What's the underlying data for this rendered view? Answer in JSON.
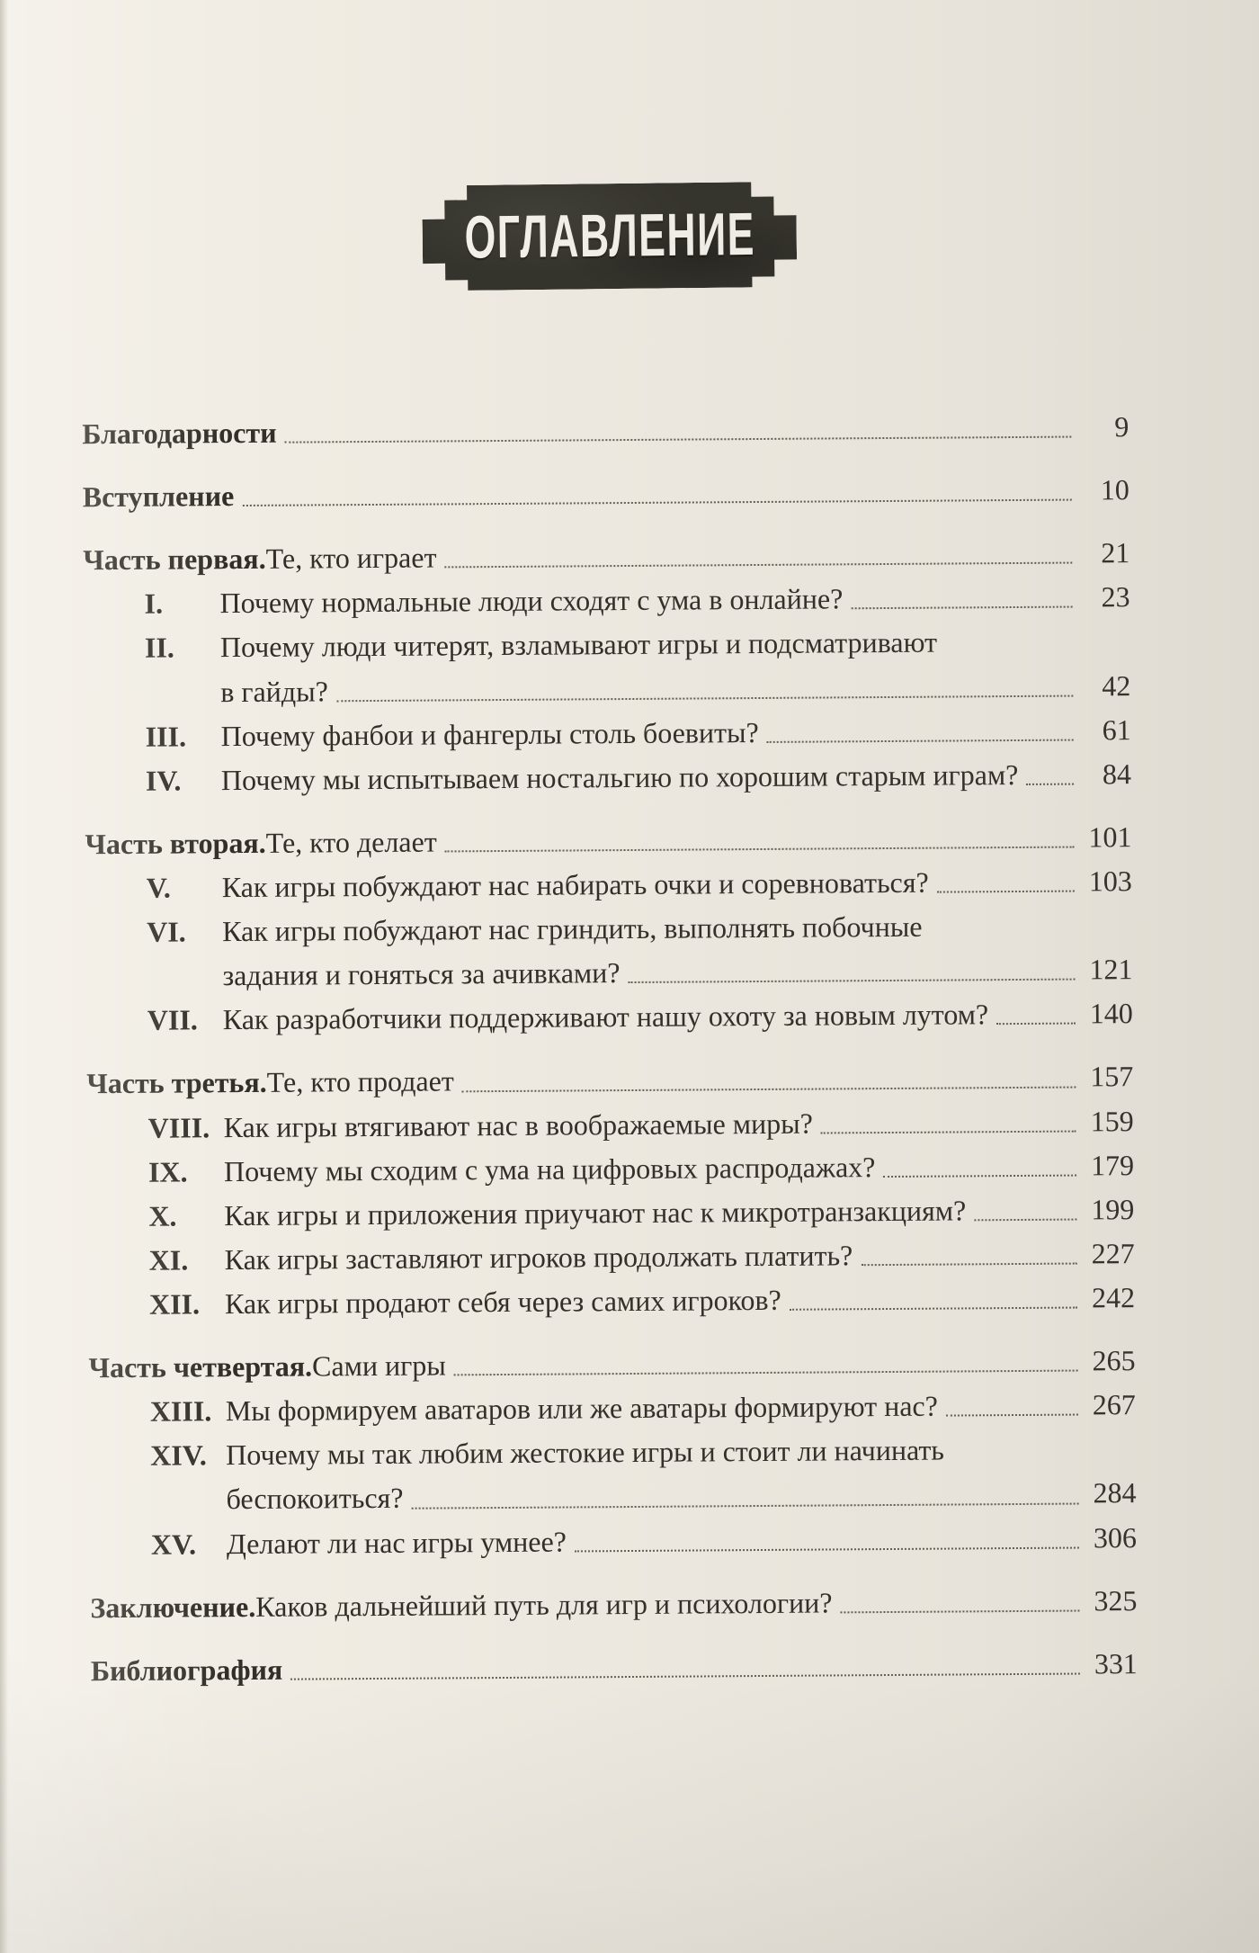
{
  "banner": {
    "title": "ОГЛАВЛЕНИЕ"
  },
  "colors": {
    "paper": "#f1ede4",
    "ink": "#322e28",
    "banner_background": "#33322b",
    "banner_text": "#f5f3ec",
    "dot_leader": "#4a463e"
  },
  "toc": {
    "entries": [
      {
        "kind": "front",
        "bold": "Благодарности",
        "page": "9"
      },
      {
        "kind": "front",
        "bold": "Вступление",
        "page": "10"
      },
      {
        "kind": "part",
        "bold": "Часть первая.",
        "rest": "Те, кто играет",
        "page": "21"
      },
      {
        "kind": "chapter",
        "num": "I.",
        "text": "Почему нормальные люди сходят с ума в онлайне?",
        "page": "23"
      },
      {
        "kind": "chapter",
        "num": "II.",
        "text": "Почему люди читерят, взламывают игры и подсматривают"
      },
      {
        "kind": "cont",
        "text": "в гайды?",
        "page": "42"
      },
      {
        "kind": "chapter",
        "num": "III.",
        "text": "Почему фанбои и фангерлы столь боевиты?",
        "page": "61"
      },
      {
        "kind": "chapter",
        "num": "IV.",
        "text": "Почему мы испытываем ностальгию по хорошим старым играм?",
        "page": "84"
      },
      {
        "kind": "part",
        "bold": "Часть вторая.",
        "rest": "Те, кто делает",
        "page": "101"
      },
      {
        "kind": "chapter",
        "num": "V.",
        "text": "Как игры побуждают нас набирать очки и соревноваться?",
        "page": "103"
      },
      {
        "kind": "chapter",
        "num": "VI.",
        "text": "Как игры побуждают нас гриндить, выполнять побочные"
      },
      {
        "kind": "cont",
        "text": "задания и гоняться за ачивками?",
        "page": "121"
      },
      {
        "kind": "chapter",
        "num": "VII.",
        "text": "Как разработчики поддерживают нашу охоту за новым лутом?",
        "page": "140"
      },
      {
        "kind": "part",
        "bold": "Часть третья.",
        "rest": "Те, кто продает",
        "page": "157"
      },
      {
        "kind": "chapter",
        "num": "VIII.",
        "text": "Как игры втягивают нас в воображаемые миры?",
        "page": "159"
      },
      {
        "kind": "chapter",
        "num": "IX.",
        "text": "Почему мы сходим с ума на цифровых распродажах?",
        "page": "179"
      },
      {
        "kind": "chapter",
        "num": "X.",
        "text": "Как игры и приложения приучают нас к микротранзакциям?",
        "page": "199"
      },
      {
        "kind": "chapter",
        "num": "XI.",
        "text": "Как игры заставляют игроков продолжать платить?",
        "page": "227"
      },
      {
        "kind": "chapter",
        "num": "XII.",
        "text": "Как игры продают себя через самих игроков?",
        "page": "242"
      },
      {
        "kind": "part",
        "bold": "Часть четвертая.",
        "rest": "Сами игры",
        "page": "265"
      },
      {
        "kind": "chapter",
        "num": "XIII.",
        "text": "Мы формируем аватаров или же аватары формируют нас?",
        "page": "267"
      },
      {
        "kind": "chapter",
        "num": "XIV.",
        "text": "Почему мы так любим жестокие игры и стоит ли начинать"
      },
      {
        "kind": "cont",
        "text": "беспокоиться?",
        "page": "284"
      },
      {
        "kind": "chapter",
        "num": "XV.",
        "text": "Делают ли нас игры умнее?",
        "page": "306"
      },
      {
        "kind": "part",
        "bold": "Заключение.",
        "rest": "Каков дальнейший путь для игр и психологии?",
        "page": "325"
      },
      {
        "kind": "front",
        "bold": "Библиография",
        "page": "331"
      }
    ]
  }
}
